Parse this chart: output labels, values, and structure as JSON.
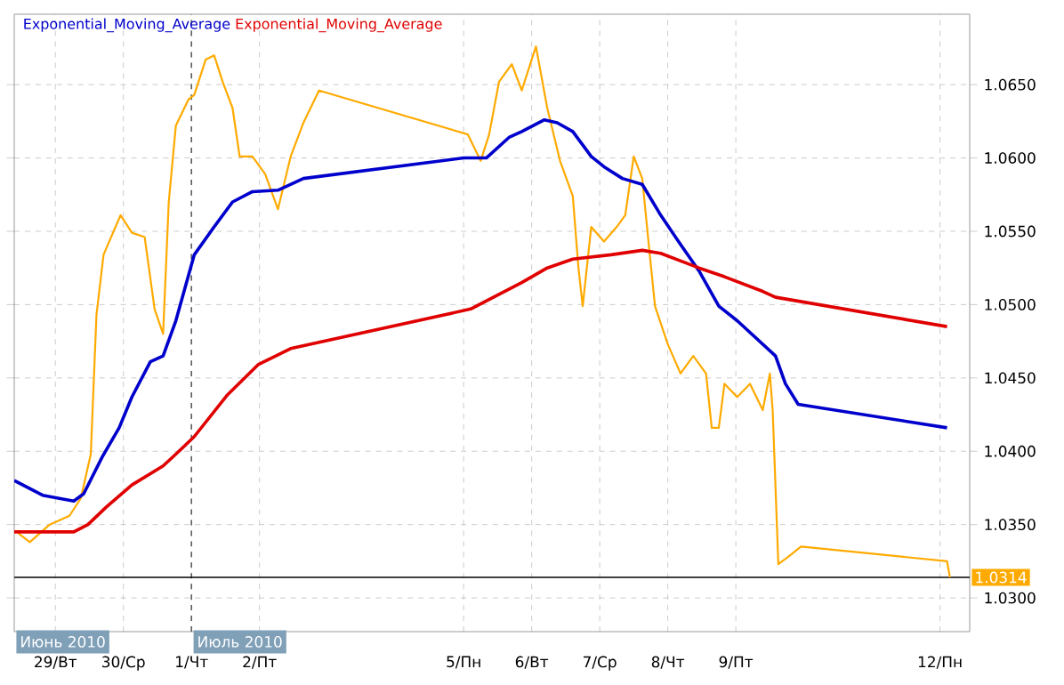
{
  "chart_data": {
    "type": "line",
    "series": [
      {
        "color": "#ffaa00",
        "x": [
          "2010-06-28T11:00",
          "2010-06-28T15:00",
          "2010-06-28T22:00",
          "2010-06-29T05:00",
          "2010-06-29T09:00",
          "2010-06-29T12:30",
          "2010-06-29T14:30",
          "2010-06-29T17:00",
          "2010-06-29T23:00",
          "2010-06-30T03:00",
          "2010-06-30T07:30",
          "2010-06-30T11:00",
          "2010-06-30T14:00",
          "2010-06-30T16:00",
          "2010-06-30T18:30",
          "2010-06-30T23:00",
          "2010-07-01T01:00",
          "2010-07-01T05:00",
          "2010-07-01T08:00",
          "2010-07-01T11:00",
          "2010-07-01T14:30",
          "2010-07-01T17:00",
          "2010-07-01T21:30",
          "2010-07-02T02:00",
          "2010-07-02T06:30",
          "2010-07-02T11:00",
          "2010-07-02T15:30",
          "2010-07-02T21:00",
          "2010-07-05T01:30",
          "2010-07-05T06:00",
          "2010-07-05T09:00",
          "2010-07-05T12:30",
          "2010-07-05T17:00",
          "2010-07-05T20:30",
          "2010-07-06T01:30",
          "2010-07-06T05:30",
          "2010-07-06T10:00",
          "2010-07-06T14:30",
          "2010-07-06T16:30",
          "2010-07-06T18:00",
          "2010-07-06T21:00",
          "2010-07-07T01:30",
          "2010-07-07T06:00",
          "2010-07-07T09:00",
          "2010-07-07T12:00",
          "2010-07-07T15:00",
          "2010-07-07T17:30",
          "2010-07-07T19:30",
          "2010-07-08T00:00",
          "2010-07-08T04:30",
          "2010-07-08T09:00",
          "2010-07-08T13:30",
          "2010-07-08T15:30",
          "2010-07-08T18:00",
          "2010-07-08T20:00",
          "2010-07-09T00:30",
          "2010-07-09T05:00",
          "2010-07-09T09:30",
          "2010-07-09T12:00",
          "2010-07-09T13:00",
          "2010-07-09T15:00",
          "2010-07-09T18:30",
          "2010-07-09T23:00",
          "2010-07-12T02:30",
          "2010-07-12T03:30"
        ],
        "values": [
          1.0344,
          1.0338,
          1.035,
          1.0356,
          1.0368,
          1.0398,
          1.0493,
          1.0534,
          1.0561,
          1.0549,
          1.0546,
          1.0497,
          1.048,
          1.057,
          1.0622,
          1.064,
          1.0643,
          1.0667,
          1.067,
          1.0652,
          1.0634,
          1.0601,
          1.0601,
          1.0589,
          1.0565,
          1.0601,
          1.0624,
          1.0646,
          1.0616,
          1.0598,
          1.0616,
          1.0652,
          1.0664,
          1.0646,
          1.0676,
          1.0634,
          1.0598,
          1.0574,
          1.0525,
          1.0499,
          1.0553,
          1.0543,
          1.0553,
          1.0561,
          1.0601,
          1.0586,
          1.0537,
          1.0499,
          1.0473,
          1.0453,
          1.0465,
          1.0453,
          1.0416,
          1.0416,
          1.0446,
          1.0437,
          1.0446,
          1.0428,
          1.0453,
          1.0428,
          1.0323,
          1.0328,
          1.0335,
          1.0325,
          1.0314
        ]
      },
      {
        "name": "Exponential_Moving_Average",
        "color": "#0000cc",
        "x": [
          "2010-06-28T09:30",
          "2010-06-28T19:30",
          "2010-06-29T06:30",
          "2010-06-29T10:00",
          "2010-06-29T16:30",
          "2010-06-29T22:30",
          "2010-06-30T03:00",
          "2010-06-30T09:30",
          "2010-06-30T14:00",
          "2010-06-30T18:30",
          "2010-07-01T01:00",
          "2010-07-01T08:00",
          "2010-07-01T14:30",
          "2010-07-01T21:30",
          "2010-07-02T06:30",
          "2010-07-02T15:30",
          "2010-07-05T00:00",
          "2010-07-05T08:00",
          "2010-07-05T16:00",
          "2010-07-05T20:30",
          "2010-07-06T04:30",
          "2010-07-06T09:00",
          "2010-07-06T14:30",
          "2010-07-06T21:00",
          "2010-07-07T01:30",
          "2010-07-07T08:00",
          "2010-07-07T15:00",
          "2010-07-07T21:30",
          "2010-07-08T04:30",
          "2010-07-08T11:00",
          "2010-07-08T18:00",
          "2010-07-09T00:30",
          "2010-07-09T09:30",
          "2010-07-09T14:00",
          "2010-07-09T17:30",
          "2010-07-09T22:00",
          "2010-07-12T02:30"
        ],
        "values": [
          1.038,
          1.037,
          1.0366,
          1.0371,
          1.0396,
          1.0416,
          1.0437,
          1.0461,
          1.0465,
          1.0489,
          1.0534,
          1.0553,
          1.057,
          1.0577,
          1.0578,
          1.0586,
          1.06,
          1.06,
          1.0614,
          1.0618,
          1.0626,
          1.0624,
          1.0618,
          1.0601,
          1.0594,
          1.0586,
          1.0582,
          1.0561,
          1.0541,
          1.0523,
          1.0499,
          1.0489,
          1.0473,
          1.0465,
          1.0446,
          1.0432,
          1.0416
        ]
      },
      {
        "name": "Exponential_Moving_Average",
        "color": "#e00000",
        "x": [
          "2010-06-28T09:30",
          "2010-06-29T06:30",
          "2010-06-29T11:30",
          "2010-06-29T18:00",
          "2010-06-30T03:00",
          "2010-06-30T14:00",
          "2010-06-30T18:30",
          "2010-07-01T01:00",
          "2010-07-01T12:30",
          "2010-07-01T23:30",
          "2010-07-02T11:00",
          "2010-07-05T02:30",
          "2010-07-05T20:30",
          "2010-07-06T05:30",
          "2010-07-06T14:30",
          "2010-07-07T04:00",
          "2010-07-07T15:00",
          "2010-07-07T21:30",
          "2010-07-08T11:00",
          "2010-07-08T20:00",
          "2010-07-09T09:30",
          "2010-07-09T14:00",
          "2010-07-12T02:30"
        ],
        "values": [
          1.0345,
          1.0345,
          1.035,
          1.0362,
          1.0377,
          1.039,
          1.0398,
          1.041,
          1.0438,
          1.0459,
          1.047,
          1.0497,
          1.0515,
          1.0525,
          1.0531,
          1.0534,
          1.0537,
          1.0535,
          1.0525,
          1.0519,
          1.0509,
          1.0505,
          1.0485
        ]
      }
    ],
    "xlim": [
      "2010-06-28T09:30",
      "2010-07-12T10:30"
    ],
    "xticks": [
      {
        "value": "2010-06-29",
        "label": "29/Вт"
      },
      {
        "value": "2010-06-30",
        "label": "30/Ср"
      },
      {
        "value": "2010-07-01",
        "label": "1/Чт"
      },
      {
        "value": "2010-07-02",
        "label": "2/Пт"
      },
      {
        "value": "2010-07-05",
        "label": "5/Пн"
      },
      {
        "value": "2010-07-06",
        "label": "6/Вт"
      },
      {
        "value": "2010-07-07",
        "label": "7/Ср"
      },
      {
        "value": "2010-07-08",
        "label": "8/Чт"
      },
      {
        "value": "2010-07-09",
        "label": "9/Пт"
      },
      {
        "value": "2010-07-12",
        "label": "12/Пн"
      }
    ],
    "ylim": [
      1.0277,
      1.0698
    ],
    "yticks": [
      {
        "value": 1.03,
        "label": "1.0300"
      },
      {
        "value": 1.035,
        "label": "1.0350"
      },
      {
        "value": 1.04,
        "label": "1.0400"
      },
      {
        "value": 1.045,
        "label": "1.0450"
      },
      {
        "value": 1.05,
        "label": "1.0500"
      },
      {
        "value": 1.055,
        "label": "1.0550"
      },
      {
        "value": 1.06,
        "label": "1.0600"
      },
      {
        "value": 1.065,
        "label": "1.0650"
      }
    ],
    "ref_lines": [
      {
        "axis": "x",
        "value": "2010-07-01",
        "color": "#606060",
        "line_style": "dashed"
      },
      {
        "axis": "y",
        "value": 1.0314,
        "label": "1.0314",
        "color": "#000000"
      }
    ],
    "annotations": [
      "Июнь 2010",
      "Июль 2010"
    ],
    "grid": true,
    "legend": "top left"
  }
}
